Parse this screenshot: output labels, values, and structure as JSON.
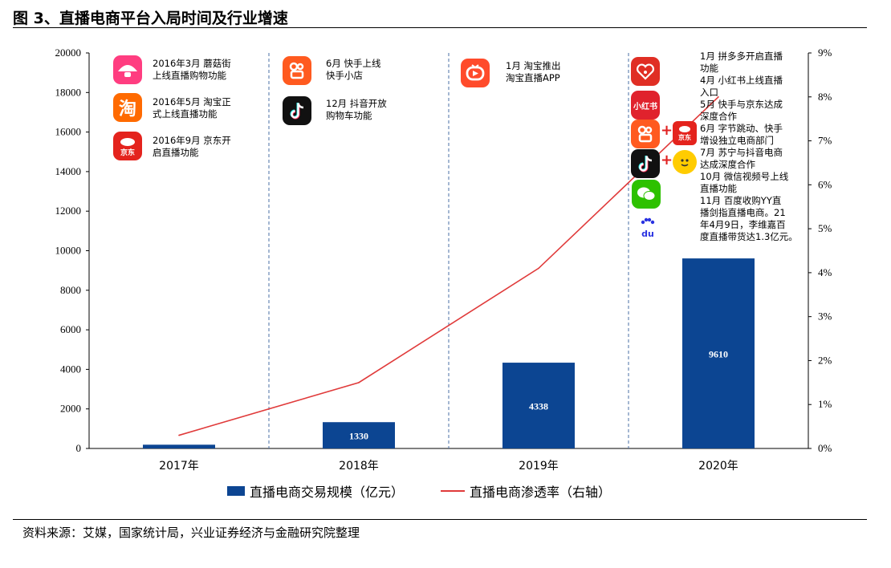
{
  "figure": {
    "title": "图 3、直播电商平台入局时间及行业增速",
    "source": "资料来源：艾媒，国家统计局，兴业证券经济与金融研究院整理"
  },
  "icons": {
    "mogujie": "mogujie-icon",
    "taobao": "taobao-icon",
    "jd": "jd-icon",
    "kuaishou": "kuaishou-icon",
    "douyin": "douyin-icon",
    "taobao_live": "taobao-live-icon",
    "pinduoduo": "pinduoduo-icon",
    "xiaohongshu": "xiaohongshu-icon",
    "wechat": "wechat-icon",
    "baidu": "baidu-icon",
    "suning": "suning-icon",
    "taobao_glyph": "淘",
    "xiaohongshu_text": "小红书",
    "jd_text": "京东",
    "baidu_text": "du"
  },
  "annotations": {
    "a2016_1": [
      "2016年3月  蘑菇街",
      "上线直播购物功能"
    ],
    "a2016_2": [
      "2016年5月  淘宝正",
      "式上线直播功能"
    ],
    "a2016_3": [
      "2016年9月  京东开",
      "启直播功能"
    ],
    "a2018_1": [
      "6月  快手上线",
      "快手小店"
    ],
    "a2018_2": [
      "12月 抖音开放",
      "购物车功能"
    ],
    "a2019_1": [
      "1月  淘宝推出",
      "淘宝直播APP"
    ],
    "a2020": [
      "1月  拼多多开启直播",
      "功能",
      "4月  小红书上线直播",
      "入口",
      "5月  快手与京东达成",
      "深度合作",
      "6月  字节跳动、快手",
      "增设独立电商部门",
      "7月  苏宁与抖音电商",
      "达成深度合作",
      "10月 微信视频号上线",
      "直播功能",
      "11月 百度收购YY直",
      "播剑指直播电商。21",
      "年4月9日，李维嘉百",
      "度直播带货达1.3亿元。"
    ]
  },
  "colors": {
    "bar": "#0c4592",
    "line": "#e03a3a",
    "divider": "#4a6fa5"
  },
  "chart_data": {
    "type": "bar",
    "categories": [
      "2017年",
      "2018年",
      "2019年",
      "2020年"
    ],
    "series": [
      {
        "name": "直播电商交易规模（亿元）",
        "type": "bar",
        "axis": "left",
        "values": [
          190,
          1330,
          4338,
          9610
        ]
      },
      {
        "name": "直播电商渗透率（右轴）",
        "type": "line",
        "axis": "right",
        "values": [
          0.3,
          1.5,
          4.1,
          8.0
        ]
      }
    ],
    "data_labels": [
      "",
      "1330",
      "4338",
      "9610"
    ],
    "y_left": {
      "ylim": [
        0,
        20000
      ],
      "ticks": [
        "0",
        "2000",
        "4000",
        "6000",
        "8000",
        "10000",
        "12000",
        "14000",
        "16000",
        "18000",
        "20000"
      ]
    },
    "y_right": {
      "ylim": [
        0,
        9
      ],
      "ticks": [
        "0%",
        "1%",
        "2%",
        "3%",
        "4%",
        "5%",
        "6%",
        "7%",
        "8%",
        "9%"
      ]
    },
    "legend": {
      "items": [
        "直播电商交易规模（亿元）",
        "直播电商渗透率（右轴）"
      ],
      "position": "bottom"
    },
    "grid": false
  }
}
